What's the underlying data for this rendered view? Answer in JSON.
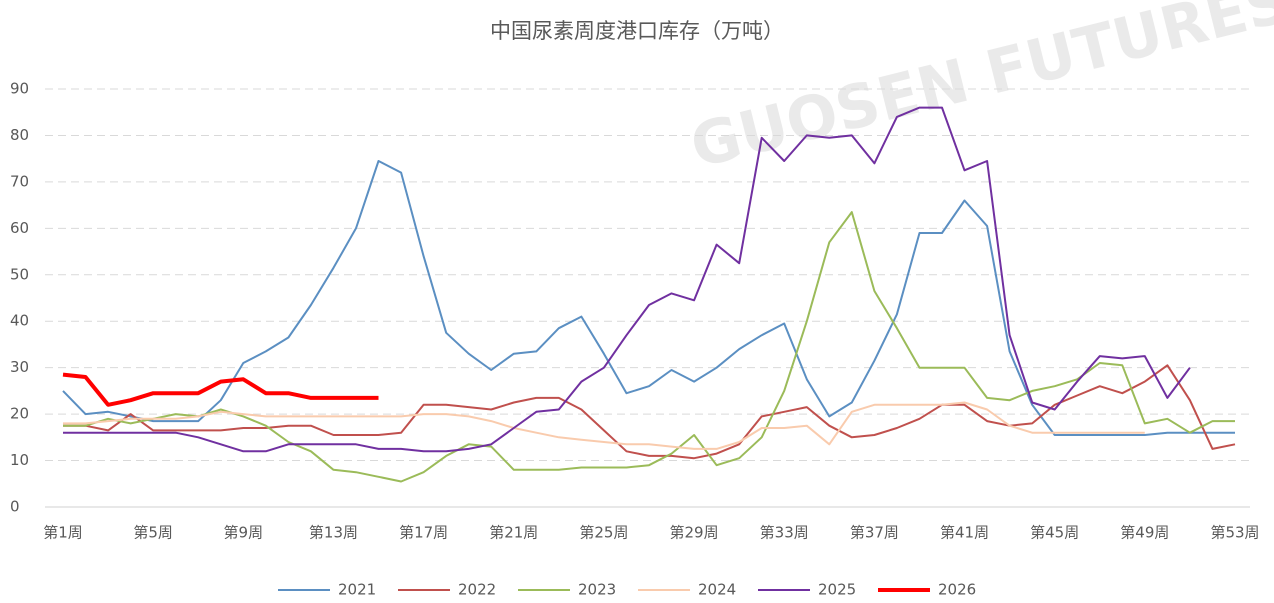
{
  "chart_data": {
    "type": "line",
    "title": "中国尿素周度港口库存（万吨）",
    "watermark": "GUOSEN FUTURES",
    "categories": [
      "第1周",
      null,
      null,
      null,
      "第5周",
      null,
      null,
      null,
      "第9周",
      null,
      null,
      null,
      "第13周",
      null,
      null,
      null,
      "第17周",
      null,
      null,
      null,
      "第21周",
      null,
      null,
      null,
      "第25周",
      null,
      null,
      null,
      "第29周",
      null,
      null,
      null,
      "第33周",
      null,
      null,
      null,
      "第37周",
      null,
      null,
      null,
      "第41周",
      null,
      null,
      null,
      "第45周",
      null,
      null,
      null,
      "第49周",
      null,
      null,
      null,
      "第53周"
    ],
    "ylim": [
      0,
      90
    ],
    "yticks": [
      0,
      10,
      20,
      30,
      40,
      50,
      60,
      70,
      80,
      90
    ],
    "grid": true,
    "legend": "bottom",
    "series": [
      {
        "name": "2021",
        "color": "#5b8fc2",
        "values": [
          25,
          20,
          20.5,
          19.5,
          18.5,
          18.5,
          18.5,
          23,
          31,
          33.5,
          36.5,
          43.5,
          51.5,
          60,
          74.5,
          72,
          54,
          37.5,
          33,
          29.5,
          33,
          33.5,
          38.5,
          41,
          33,
          24.5,
          26,
          29.5,
          27,
          30,
          34,
          37,
          39.5,
          27.5,
          19.5,
          22.5,
          31.5,
          41.5,
          59,
          59,
          66,
          60.5,
          33.5,
          22,
          15.5,
          15.5,
          15.5,
          15.5,
          15.5,
          16,
          16,
          16,
          16
        ]
      },
      {
        "name": "2022",
        "color": "#c0504d",
        "values": [
          17.5,
          17.5,
          16.5,
          20,
          16.5,
          16.5,
          16.5,
          16.5,
          17,
          17,
          17.5,
          17.5,
          15.5,
          15.5,
          15.5,
          16,
          22,
          22,
          21.5,
          21,
          22.5,
          23.5,
          23.5,
          21,
          16.5,
          12,
          11,
          11,
          10.5,
          11.5,
          13.5,
          19.5,
          20.5,
          21.5,
          17.5,
          15,
          15.5,
          17,
          19,
          22,
          22,
          18.5,
          17.5,
          18,
          22,
          24,
          26,
          24.5,
          27,
          30.5,
          23,
          12.5,
          13.5
        ]
      },
      {
        "name": "2023",
        "color": "#9bbb59",
        "values": [
          17.5,
          17.5,
          19,
          18,
          19,
          20,
          19.5,
          21,
          19.5,
          17.5,
          14,
          12,
          8,
          7.5,
          6.5,
          5.5,
          7.5,
          11,
          13.5,
          13,
          8,
          8,
          8,
          8.5,
          8.5,
          8.5,
          9,
          11.5,
          15.5,
          9,
          10.5,
          15,
          25,
          40,
          57,
          63.5,
          46.5,
          38.5,
          30,
          30,
          30,
          23.5,
          23,
          25,
          26,
          27.5,
          31,
          30.5,
          18,
          19,
          16,
          18.5,
          18.5
        ]
      },
      {
        "name": "2024",
        "color": "#f9cbad",
        "values": [
          18,
          18,
          18.5,
          19,
          19,
          19,
          19.5,
          20.5,
          20,
          19.5,
          19.5,
          19.5,
          19.5,
          19.5,
          19.5,
          19.5,
          20,
          20,
          19.5,
          18.5,
          17,
          16,
          15,
          14.5,
          14,
          13.5,
          13.5,
          13,
          12.5,
          12.5,
          14,
          17,
          17,
          17.5,
          13.5,
          20.5,
          22,
          22,
          22,
          22,
          22.5,
          21,
          17.5,
          16,
          16,
          16,
          16,
          16,
          16,
          null,
          null,
          null,
          null
        ]
      },
      {
        "name": "2025",
        "color": "#7030a0",
        "values": [
          16,
          16,
          16,
          16,
          16,
          16,
          15,
          13.5,
          12,
          12,
          13.5,
          13.5,
          13.5,
          13.5,
          12.5,
          12.5,
          12,
          12,
          12.5,
          13.5,
          17,
          20.5,
          21,
          27,
          30,
          37,
          43.5,
          46,
          44.5,
          56.5,
          52.5,
          79.5,
          74.5,
          80,
          79.5,
          80,
          74,
          84,
          86,
          86,
          72.5,
          74.5,
          37,
          22.5,
          21,
          27,
          32.5,
          32,
          32.5,
          23.5,
          30,
          null,
          null
        ]
      },
      {
        "name": "2026",
        "color": "#ff0000",
        "width": 4,
        "values": [
          28.5,
          28,
          22,
          23,
          24.5,
          24.5,
          24.5,
          27,
          27.5,
          24.5,
          24.5,
          23.5,
          23.5,
          23.5,
          23.5,
          null,
          null,
          null,
          null,
          null,
          null,
          null,
          null,
          null,
          null,
          null,
          null,
          null,
          null,
          null,
          null,
          null,
          null,
          null,
          null,
          null,
          null,
          null,
          null,
          null,
          null,
          null,
          null,
          null,
          null,
          null,
          null,
          null,
          null,
          null,
          null,
          null,
          null
        ]
      }
    ]
  }
}
